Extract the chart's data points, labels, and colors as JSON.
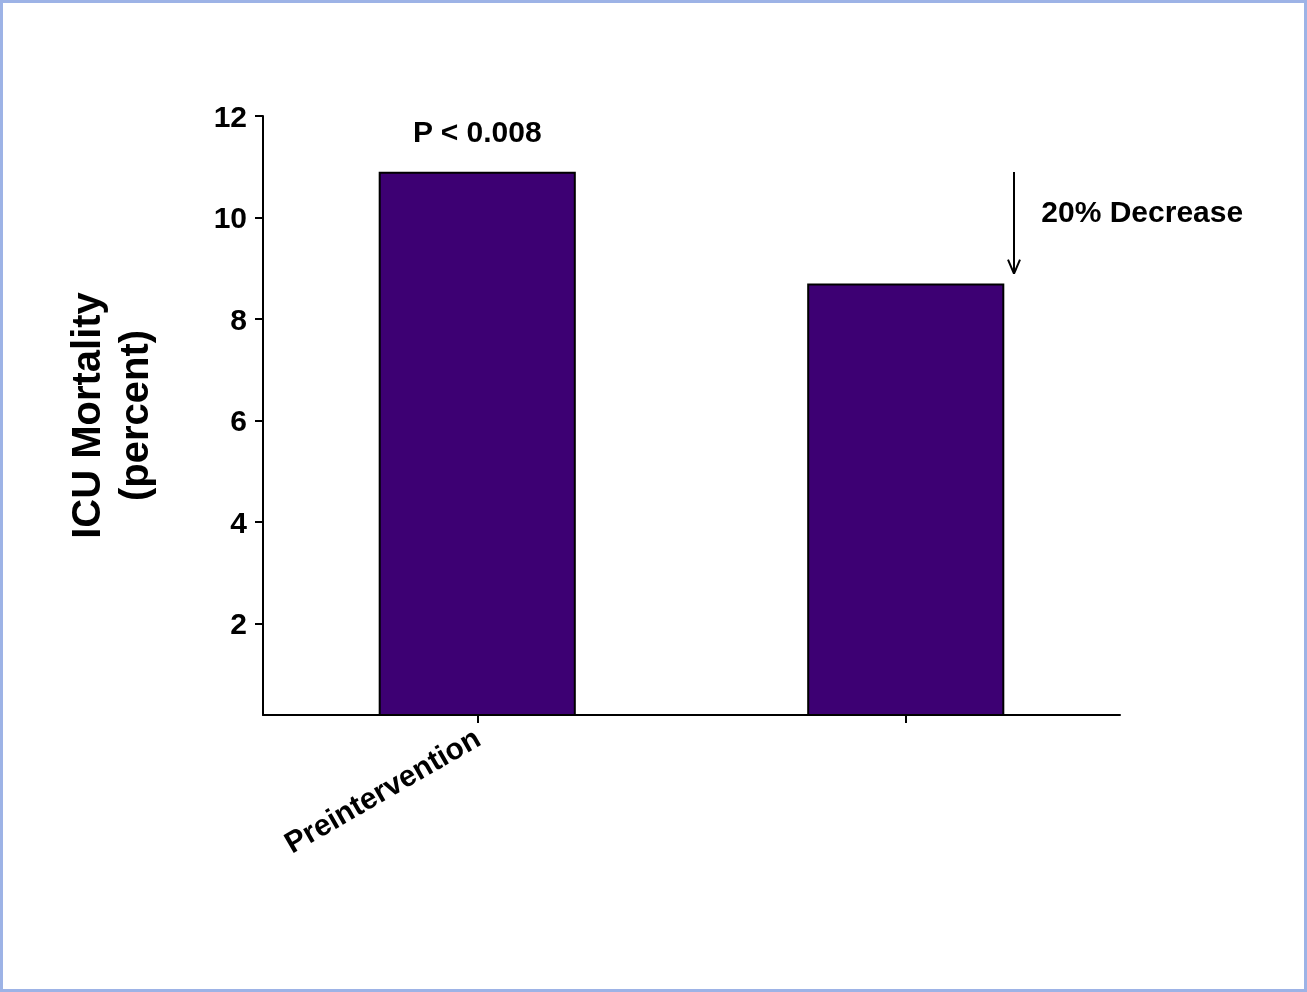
{
  "chart_data": {
    "type": "bar",
    "categories": [
      "Preintervention",
      null
    ],
    "values": [
      10.9,
      8.7
    ],
    "color": "#3d0073",
    "ylabel": "ICU Mortality\n(percent)",
    "ylim": [
      0.2,
      12
    ],
    "yticks": [
      2,
      4,
      6,
      8,
      10,
      12
    ],
    "annotations": [
      "P < 0.008",
      "20% Decrease"
    ],
    "grid": false
  }
}
